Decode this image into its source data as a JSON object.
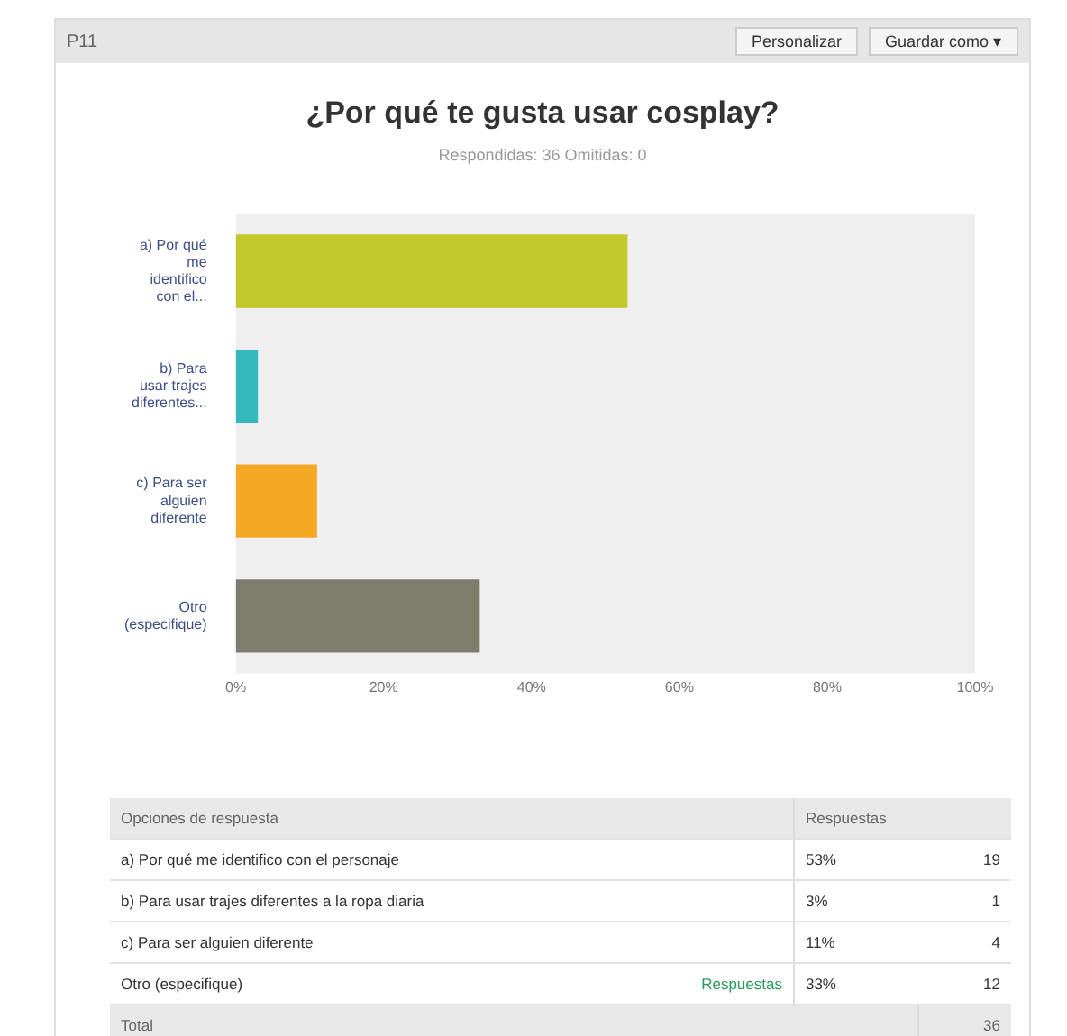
{
  "chart_data": {
    "type": "bar",
    "orientation": "horizontal",
    "title": "¿Por qué te gusta usar cosplay?",
    "subtitle": "Respondidas: 36   Omitidas: 0",
    "categories": [
      "a) Por qué me identifico con el...",
      "b) Para usar trajes diferentes...",
      "c) Para ser alguien diferente",
      "Otro (especifique)"
    ],
    "values": [
      53,
      3,
      11,
      33
    ],
    "colors": [
      "#c3c92b",
      "#35b9bf",
      "#f4a824",
      "#7c7d6b"
    ],
    "xlim": [
      0,
      100
    ],
    "xticks": [
      {
        "value": 0,
        "label": "0%"
      },
      {
        "value": 20,
        "label": "20%"
      },
      {
        "value": 40,
        "label": "40%"
      },
      {
        "value": 60,
        "label": "60%"
      },
      {
        "value": 80,
        "label": "80%"
      },
      {
        "value": 100,
        "label": "100%"
      }
    ],
    "grid": false,
    "legend": false,
    "annotations": [
      "P11",
      "Personalizar",
      "Guardar como ▾",
      "Opciones de respuesta",
      "Respuestas",
      "a) Por qué me identifico con el personaje",
      "b) Para usar trajes diferentes a la ropa diaria",
      "c) Para ser alguien diferente",
      "Otro (especifique)",
      "19",
      "1",
      "4",
      "12",
      "Respuestas",
      "Total",
      "36",
      "53%",
      "3%",
      "11%",
      "33%"
    ]
  }
}
